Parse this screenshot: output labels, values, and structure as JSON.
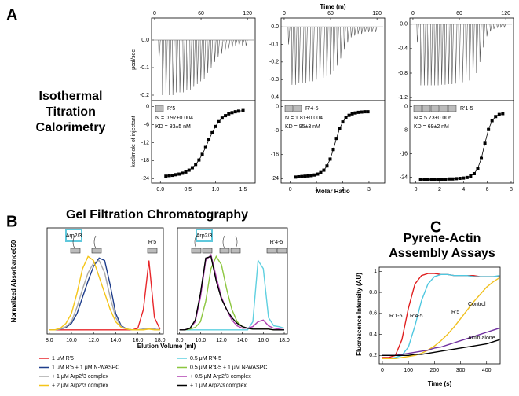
{
  "chart_data": [
    {
      "type": "spike",
      "panel": "A",
      "title": [
        "Isothermal",
        "Titration",
        "Calorimetry"
      ],
      "ylabel": "μcal/sec",
      "xlim": [
        -4,
        130
      ],
      "ylim": [
        -0.22,
        0.08
      ],
      "xticks": [
        0,
        60,
        120
      ],
      "yticks": [
        {
          "value": 0,
          "label": "0.0"
        },
        -0.1,
        -0.2
      ],
      "x": [
        5,
        9.5,
        14,
        18.5,
        23,
        27.5,
        32,
        36.5,
        41,
        45.5,
        50,
        54.5,
        59,
        63.5,
        68,
        72.5,
        77,
        81.5,
        86,
        90.5,
        95,
        99.5,
        104,
        108.5,
        113,
        117.5
      ],
      "series": [
        {
          "color": "#555555",
          "values": [
            -0.07,
            -0.2,
            -0.2,
            -0.2,
            -0.2,
            -0.19,
            -0.19,
            -0.19,
            -0.18,
            -0.18,
            -0.17,
            -0.16,
            -0.15,
            -0.14,
            -0.12,
            -0.1,
            -0.08,
            -0.06,
            -0.05,
            -0.04,
            -0.03,
            -0.03,
            -0.02,
            -0.02,
            -0.02,
            -0.02
          ]
        }
      ]
    },
    {
      "type": "spike",
      "xlabel": "Time (m)",
      "xlim": [
        -4,
        130
      ],
      "ylim": [
        -0.42,
        0.05
      ],
      "xticks": [
        0,
        60,
        120
      ],
      "yticks": [
        {
          "value": 0,
          "label": "0.0"
        },
        -0.1,
        -0.2,
        -0.3,
        -0.4
      ],
      "x": [
        5,
        9.5,
        14,
        18.5,
        23,
        27.5,
        32,
        36.5,
        41,
        45.5,
        50,
        54.5,
        59,
        63.5,
        68,
        72.5,
        77,
        81.5,
        86,
        90.5,
        95,
        99.5,
        104,
        108.5,
        113,
        117.5
      ],
      "series": [
        {
          "color": "#555555",
          "values": [
            -0.1,
            -0.33,
            -0.33,
            -0.32,
            -0.32,
            -0.32,
            -0.31,
            -0.31,
            -0.3,
            -0.3,
            -0.29,
            -0.28,
            -0.27,
            -0.25,
            -0.22,
            -0.18,
            -0.13,
            -0.09,
            -0.06,
            -0.05,
            -0.04,
            -0.04,
            -0.03,
            -0.03,
            -0.03,
            -0.03
          ]
        }
      ]
    },
    {
      "type": "spike",
      "xlim": [
        -4,
        130
      ],
      "ylim": [
        -1.25,
        0.1
      ],
      "xticks": [
        0,
        60,
        120
      ],
      "yticks": [
        {
          "value": 0,
          "label": "0.0"
        },
        -0.4,
        -0.8,
        -1.2
      ],
      "x": [
        5,
        9.5,
        14,
        18.5,
        23,
        27.5,
        32,
        36.5,
        41,
        45.5,
        50,
        54.5,
        59,
        63.5,
        68,
        72.5,
        77,
        81.5,
        86,
        90.5,
        95,
        99.5,
        104,
        108.5,
        113,
        117.5
      ],
      "series": [
        {
          "color": "#555555",
          "values": [
            -0.3,
            -1.0,
            -1.0,
            -1.0,
            -1.0,
            -1.0,
            -1.0,
            -0.99,
            -0.99,
            -0.98,
            -0.98,
            -0.97,
            -0.96,
            -0.95,
            -0.94,
            -0.92,
            -0.88,
            -0.8,
            -0.62,
            -0.38,
            -0.2,
            -0.12,
            -0.08,
            -0.06,
            -0.05,
            -0.05
          ]
        }
      ]
    },
    {
      "type": "scatter",
      "ylabel": "kcal/mole of injectant",
      "annotations": [
        "R'5",
        "N = 0.97±0.004",
        "KD = 83±5 nM"
      ],
      "xlim": [
        -0.16,
        1.72
      ],
      "ylim": [
        -25.5,
        2
      ],
      "xticks": [
        {
          "value": 0,
          "label": "0.0"
        },
        0.5,
        {
          "value": 1,
          "label": "1.0"
        },
        1.5
      ],
      "yticks": [
        0,
        -6,
        -12,
        -18,
        -24
      ],
      "x": [
        0.1,
        0.16,
        0.22,
        0.28,
        0.34,
        0.4,
        0.46,
        0.52,
        0.58,
        0.64,
        0.7,
        0.76,
        0.82,
        0.88,
        0.94,
        1.0,
        1.06,
        1.12,
        1.18,
        1.24,
        1.3,
        1.36,
        1.42,
        1.5
      ],
      "series": [
        {
          "color": "#000000",
          "values": [
            -23.2,
            -23.0,
            -22.9,
            -22.7,
            -22.5,
            -22.2,
            -21.8,
            -21.2,
            -20.4,
            -19.3,
            -17.8,
            -15.9,
            -13.6,
            -11.1,
            -8.7,
            -6.6,
            -5.0,
            -3.8,
            -3.0,
            -2.4,
            -2.0,
            -1.7,
            -1.5,
            -1.3
          ]
        }
      ]
    },
    {
      "type": "scatter",
      "xlabel": "Molar Ratio",
      "annotations": [
        "R'4-5",
        "N = 1.81±0.004",
        "KD = 95±3 nM"
      ],
      "xlim": [
        -0.35,
        3.6
      ],
      "ylim": [
        -25.5,
        2
      ],
      "xticks": [
        0,
        1,
        2,
        3
      ],
      "yticks": [
        0,
        -8,
        -16,
        -24
      ],
      "x": [
        0.2,
        0.32,
        0.44,
        0.56,
        0.68,
        0.8,
        0.92,
        1.04,
        1.16,
        1.28,
        1.4,
        1.52,
        1.64,
        1.76,
        1.88,
        2.0,
        2.12,
        2.24,
        2.36,
        2.48,
        2.6,
        2.72,
        2.84,
        2.96
      ],
      "series": [
        {
          "color": "#000000",
          "values": [
            -23.5,
            -23.4,
            -23.3,
            -23.2,
            -23.1,
            -23.0,
            -22.8,
            -22.5,
            -22.0,
            -21.2,
            -19.8,
            -17.5,
            -14.3,
            -10.6,
            -7.4,
            -5.1,
            -3.7,
            -2.9,
            -2.4,
            -2.1,
            -1.9,
            -1.8,
            -1.7,
            -1.7
          ]
        }
      ]
    },
    {
      "type": "scatter",
      "annotations": [
        "R'1-5",
        "N = 5.73±0.006",
        "KD = 69±2 nM"
      ],
      "xlim": [
        -0.5,
        8.2
      ],
      "ylim": [
        -26,
        2
      ],
      "xticks": [
        0,
        2,
        4,
        6,
        8
      ],
      "yticks": [
        0,
        -8,
        -16,
        -24
      ],
      "x": [
        0.4,
        0.7,
        1.0,
        1.3,
        1.6,
        1.9,
        2.2,
        2.5,
        2.8,
        3.1,
        3.4,
        3.7,
        4.0,
        4.3,
        4.6,
        4.9,
        5.2,
        5.5,
        5.8,
        6.1,
        6.4,
        6.7,
        7.0,
        7.3
      ],
      "series": [
        {
          "color": "#000000",
          "values": [
            -24.8,
            -24.8,
            -24.8,
            -24.8,
            -24.8,
            -24.7,
            -24.7,
            -24.7,
            -24.6,
            -24.6,
            -24.5,
            -24.4,
            -24.3,
            -24.1,
            -23.6,
            -22.8,
            -21.0,
            -17.6,
            -12.5,
            -7.8,
            -4.8,
            -3.4,
            -2.7,
            -2.4
          ]
        }
      ]
    },
    {
      "type": "line",
      "panel": "B",
      "title": [
        "Gel Filtration Chromatography"
      ],
      "ylabel": "Normalized Absorbance650",
      "xlabel": "Elution Volume (ml)",
      "legend": true,
      "icon_labels": [
        "Arp2/3",
        "R'5"
      ],
      "xlim": [
        7.8,
        18.3
      ],
      "ylim": [
        -0.05,
        1.25
      ],
      "xticks": [
        {
          "value": 8,
          "label": "8.0"
        },
        {
          "value": 10,
          "label": "10.0"
        },
        {
          "value": 12,
          "label": "12.0"
        },
        {
          "value": 14,
          "label": "14.0"
        },
        {
          "value": 16,
          "label": "16.0"
        },
        {
          "value": 18,
          "label": "18.0"
        }
      ],
      "x": [
        8,
        8.5,
        9,
        9.5,
        10,
        10.5,
        11,
        11.5,
        12,
        12.5,
        13,
        13.5,
        14,
        14.5,
        15,
        15.5,
        16,
        16.5,
        17,
        17.5,
        18
      ],
      "series": [
        {
          "name": "1 μM R'5",
          "color": "#e8262a",
          "values": [
            0,
            0,
            0,
            0,
            0,
            0,
            0,
            0,
            0,
            0,
            0,
            0,
            0,
            0,
            0,
            0,
            0.02,
            0.25,
            0.85,
            0.15,
            0.01
          ]
        },
        {
          "name": "1 μM R'5 + 1 μM N-WASPC",
          "color": "#1f3e8c",
          "values": [
            0,
            0,
            0.01,
            0.03,
            0.08,
            0.2,
            0.4,
            0.6,
            0.78,
            0.88,
            0.85,
            0.55,
            0.2,
            0.05,
            0.01,
            0,
            0,
            0.01,
            0.02,
            0.01,
            0
          ]
        },
        {
          "name": "+ 1 μM Arp2/3 complex",
          "color": "#a8a8a8",
          "values": [
            0,
            0,
            0.01,
            0.04,
            0.1,
            0.28,
            0.5,
            0.7,
            0.82,
            0.85,
            0.7,
            0.4,
            0.15,
            0.04,
            0.01,
            0,
            0,
            0.01,
            0.02,
            0.01,
            0
          ]
        },
        {
          "name": "+ 2 μM Arp2/3 complex",
          "color": "#f5c518",
          "values": [
            0,
            0,
            0.02,
            0.08,
            0.2,
            0.45,
            0.75,
            0.9,
            0.85,
            0.65,
            0.45,
            0.25,
            0.1,
            0.03,
            0.01,
            0,
            0,
            0,
            0.01,
            0,
            0
          ]
        }
      ]
    },
    {
      "type": "line",
      "legend": true,
      "icon_labels": [
        "Arp2/3",
        "R'4-5"
      ],
      "xlim": [
        7.8,
        18.3
      ],
      "ylim": [
        -0.05,
        1.25
      ],
      "xticks": [
        {
          "value": 8,
          "label": "8.0"
        },
        {
          "value": 10,
          "label": "10.0"
        },
        {
          "value": 12,
          "label": "12.0"
        },
        {
          "value": 14,
          "label": "14.0"
        },
        {
          "value": 16,
          "label": "16.0"
        },
        {
          "value": 18,
          "label": "18.0"
        }
      ],
      "x": [
        8,
        8.5,
        9,
        9.5,
        10,
        10.5,
        11,
        11.5,
        12,
        12.5,
        13,
        13.5,
        14,
        14.5,
        15,
        15.5,
        16,
        16.5,
        17,
        17.5,
        18
      ],
      "series": [
        {
          "name": "0.5 μM R'4-5",
          "color": "#5fd0e0",
          "values": [
            0,
            0,
            0,
            0,
            0,
            0,
            0,
            0,
            0,
            0,
            0,
            0,
            0,
            0,
            0.1,
            0.85,
            0.75,
            0.15,
            0.05,
            0.04,
            0.02
          ]
        },
        {
          "name": "0.5 μM R'4-5 + 1 μM N-WASPC",
          "color": "#8cc63f",
          "values": [
            0,
            0,
            0.01,
            0.03,
            0.1,
            0.35,
            0.75,
            0.9,
            0.8,
            0.5,
            0.25,
            0.1,
            0.04,
            0.02,
            0.01,
            0.01,
            0.01,
            0.01,
            0,
            0,
            0
          ]
        },
        {
          "name": "+ 0.5 μM Arp2/3 complex",
          "color": "#b040b0",
          "values": [
            0,
            0,
            0.02,
            0.1,
            0.4,
            0.85,
            0.92,
            0.65,
            0.4,
            0.25,
            0.12,
            0.05,
            0.02,
            0.02,
            0.04,
            0.1,
            0.12,
            0.05,
            0.02,
            0.01,
            0
          ]
        },
        {
          "name": "+ 1 μM Arp2/3 complex",
          "color": "#000000",
          "values": [
            0,
            0,
            0.02,
            0.12,
            0.45,
            0.88,
            0.9,
            0.6,
            0.38,
            0.25,
            0.15,
            0.08,
            0.04,
            0.02,
            0.01,
            0.01,
            0.01,
            0.01,
            0,
            0,
            0
          ]
        }
      ]
    },
    {
      "type": "line",
      "panel": "C",
      "title": [
        "Pyrene-Actin",
        "Assembly Assays"
      ],
      "ylabel": "Fluorescence Intensity (AU)",
      "xlabel": "Time (s)",
      "xlim": [
        -12,
        452
      ],
      "ylim": [
        0.12,
        1.04
      ],
      "xticks": [
        0,
        100,
        200,
        300,
        400
      ],
      "yticks": [
        0.2,
        0.4,
        0.6,
        0.8,
        1
      ],
      "x": [
        0,
        25,
        50,
        75,
        100,
        125,
        150,
        175,
        200,
        225,
        250,
        275,
        300,
        325,
        350,
        375,
        400,
        425,
        450
      ],
      "series": [
        {
          "name": "R'1-5",
          "color": "#e02020",
          "values": [
            0.18,
            0.18,
            0.2,
            0.35,
            0.65,
            0.88,
            0.96,
            0.98,
            0.98,
            0.97,
            0.97,
            0.96,
            0.96,
            0.96,
            0.96,
            0.95,
            0.95,
            0.95,
            0.95
          ]
        },
        {
          "name": "R'4-5",
          "color": "#50c8e0",
          "values": [
            0.17,
            0.17,
            0.18,
            0.2,
            0.28,
            0.48,
            0.72,
            0.88,
            0.95,
            0.97,
            0.97,
            0.96,
            0.96,
            0.96,
            0.95,
            0.95,
            0.95,
            0.95,
            0.96
          ]
        },
        {
          "name": "R'5",
          "color": "#f0c020",
          "values": [
            0.17,
            0.17,
            0.17,
            0.18,
            0.19,
            0.2,
            0.22,
            0.25,
            0.29,
            0.34,
            0.4,
            0.47,
            0.55,
            0.63,
            0.71,
            0.78,
            0.85,
            0.9,
            0.94
          ]
        },
        {
          "name": "Control",
          "color": "#7030a0",
          "values": [
            0.2,
            0.2,
            0.2,
            0.21,
            0.22,
            0.23,
            0.24,
            0.25,
            0.27,
            0.28,
            0.3,
            0.32,
            0.34,
            0.36,
            0.38,
            0.4,
            0.42,
            0.44,
            0.46
          ]
        },
        {
          "name": "Actin alone",
          "color": "#000000",
          "values": [
            0.2,
            0.2,
            0.2,
            0.2,
            0.2,
            0.21,
            0.21,
            0.22,
            0.23,
            0.24,
            0.25,
            0.26,
            0.27,
            0.28,
            0.29,
            0.3,
            0.31,
            0.33,
            0.35
          ]
        }
      ]
    }
  ]
}
